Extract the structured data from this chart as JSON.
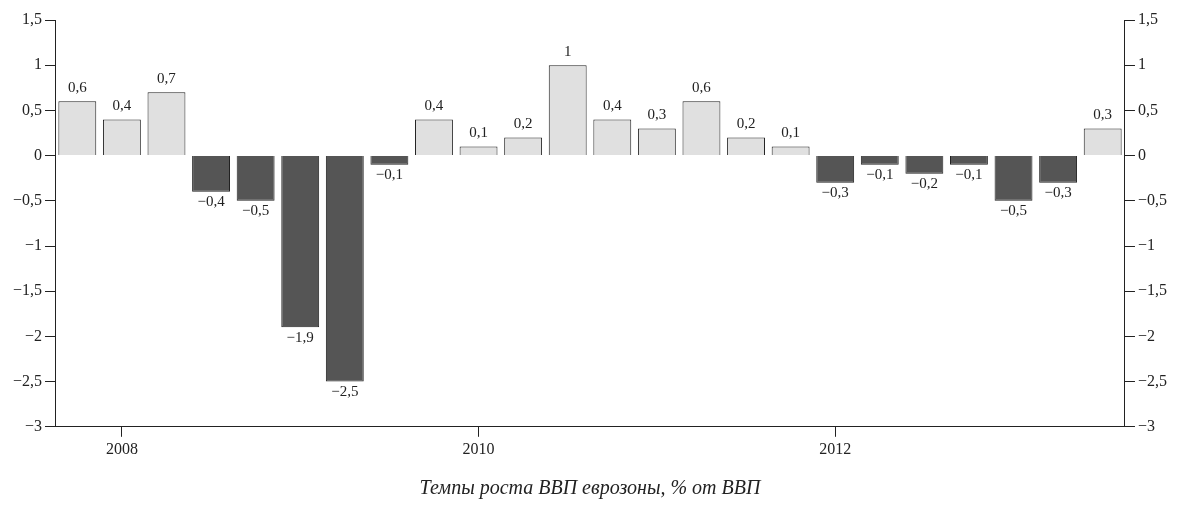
{
  "chart_data": {
    "type": "bar",
    "categories": [
      null,
      "2008",
      null,
      null,
      null,
      null,
      null,
      null,
      null,
      "2010",
      null,
      null,
      null,
      null,
      null,
      null,
      null,
      "2012",
      null,
      null,
      null,
      null,
      null,
      null
    ],
    "values": [
      0.6,
      0.4,
      0.7,
      -0.4,
      -0.5,
      -1.9,
      -2.5,
      -0.1,
      0.4,
      0.1,
      0.2,
      1,
      0.4,
      0.3,
      0.6,
      0.2,
      0.1,
      -0.3,
      -0.1,
      -0.2,
      -0.1,
      -0.5,
      -0.3,
      0.3
    ],
    "colors": [
      "#e0e0e0",
      "#e0e0e0",
      "#e0e0e0",
      "#555555",
      "#555555",
      "#555555",
      "#555555",
      "#555555",
      "#e0e0e0",
      "#e0e0e0",
      "#e0e0e0",
      "#e0e0e0",
      "#e0e0e0",
      "#e0e0e0",
      "#e0e0e0",
      "#e0e0e0",
      "#e0e0e0",
      "#555555",
      "#555555",
      "#555555",
      "#555555",
      "#555555",
      "#555555",
      "#e0e0e0"
    ],
    "value_labels": [
      "0,6",
      "0,4",
      "0,7",
      "−0,4",
      "−0,5",
      "−1,9",
      "−2,5",
      "−0,1",
      "0,4",
      "0,1",
      "0,2",
      "1",
      "0,4",
      "0,3",
      "0,6",
      "0,2",
      "0,1",
      "−0,3",
      "−0,1",
      "−0,2",
      "−0,1",
      "−0,5",
      "−0,3",
      "0,3"
    ],
    "ylim": [
      -3,
      1.5
    ],
    "yticks": [
      {
        "value": -3,
        "label": "−3"
      },
      {
        "value": -2.5,
        "label": "−2,5"
      },
      {
        "value": -2,
        "label": "−2"
      },
      {
        "value": -1.5,
        "label": "−1,5"
      },
      {
        "value": -1,
        "label": "−1"
      },
      {
        "value": -0.5,
        "label": "−0,5"
      },
      0,
      {
        "value": 0.5,
        "label": "0,5"
      },
      1,
      {
        "value": 1.5,
        "label": "1,5"
      }
    ],
    "y2lim": [
      -3,
      1.5
    ],
    "y2ticks": [
      {
        "value": -3,
        "label": "−3"
      },
      {
        "value": -2.5,
        "label": "−2,5"
      },
      {
        "value": -2,
        "label": "−2"
      },
      {
        "value": -1.5,
        "label": "−1,5"
      },
      {
        "value": -1,
        "label": "−1"
      },
      {
        "value": -0.5,
        "label": "−0,5"
      },
      0,
      {
        "value": 0.5,
        "label": "0,5"
      },
      1,
      {
        "value": 1.5,
        "label": "1,5"
      }
    ],
    "grid": false,
    "legend": false,
    "annotations": [
      "Темпы роста ВВП еврозоны, % от ВВП"
    ]
  }
}
